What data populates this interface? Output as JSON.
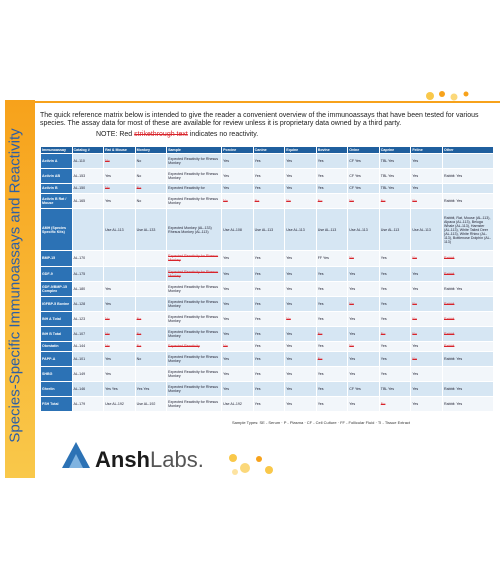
{
  "side_title": "Species-Specific Immunoassays and Reactivity",
  "intro": "The quick reference matrix below is intended to give the reader a convenient overview of the immunoassays that have been tested for various species. The assay data for most of these are available for review unless it is proprietary data owned by a third party.",
  "note": {
    "prefix": "NOTE: Red",
    "strike": "strikethrough text",
    "suffix": "indicates no reactivity.",
    "color": "#d8232a"
  },
  "table": {
    "columns": [
      "Immunoassay",
      "Catalog #",
      "Rat & Mouse",
      "Monkey",
      "Sample",
      "Porcine",
      "Canine",
      "Equine",
      "Bovine",
      "Ovine",
      "Caprine",
      "Feline",
      "Other"
    ],
    "rows": [
      [
        "Activin A",
        "AL-110",
        {
          "text": "No",
          "color": "#d8232a"
        },
        "No",
        "Expected Reactivity for Rhesus Monkey",
        "Yes",
        "Yes",
        "Yes",
        "Yes",
        "CF Yes",
        "TBL Yes",
        "Yes",
        ""
      ],
      [
        "Activin AB",
        "AL-153",
        "Yes",
        "No",
        "Expected Reactivity for Rhesus Monkey",
        "Yes",
        "Yes",
        "Yes",
        "Yes",
        "CF Yes",
        "TBL Yes",
        "Yes",
        "Rabbit: Yes"
      ],
      [
        "Activin B",
        "AL-150",
        {
          "text": "No",
          "color": "#d8232a"
        },
        {
          "text": "No",
          "color": "#d8232a"
        },
        "Expected Reactivity for",
        "Yes",
        "Yes",
        "Yes",
        "Yes",
        "CF Yes",
        "TBL Yes",
        "Yes",
        ""
      ],
      [
        "Activin B Rat / Mouse",
        "AL-165",
        "Yes",
        "No",
        "Expected Reactivity for Rhesus Monkey",
        {
          "text": "No",
          "color": "#d8232a"
        },
        {
          "text": "No",
          "color": "#d8232a"
        },
        {
          "text": "No",
          "color": "#d8232a"
        },
        {
          "text": "No",
          "color": "#d8232a"
        },
        {
          "text": "No",
          "color": "#d8232a"
        },
        {
          "text": "No",
          "color": "#d8232a"
        },
        {
          "text": "No",
          "color": "#d8232a"
        },
        "Rabbit: Yes"
      ],
      [
        "AMH (Species Specific Kits)",
        "",
        "Use AL-113",
        "Use AL-133",
        "Expected Monkey (AL-133) Rhesus Monkey (AL-113)",
        "Use AL-108",
        "Use AL-113",
        "Use AL-113",
        "Use AL-113",
        "Use AL-113",
        "Use AL-113",
        "Use AL-113",
        "Rabbit, Rat, Mouse (AL-113), Alpaca (AL-113), Beluga Whale (AL-113), Hamster (AL-113), White Tailed Deer (AL-113), White Rhino (AL-113), Bottlenose Dolphin (AL-113)"
      ],
      [
        "BMP-15",
        "AL-170",
        "",
        "",
        {
          "text": "Expected Reactivity for Rhesus Monkey",
          "color": "#d8232a"
        },
        "Yes",
        "Yes",
        "Yes",
        "FF Yes",
        {
          "text": "No",
          "color": "#d8232a"
        },
        "Yes",
        {
          "text": "No",
          "color": "#d8232a"
        },
        {
          "text": "Rabbit",
          "color": "#d8232a"
        }
      ],
      [
        "GDF-9",
        "AL-175",
        "",
        "",
        {
          "text": "Expected Reactivity for Rhesus Monkey",
          "color": "#d8232a"
        },
        "Yes",
        "Yes",
        "Yes",
        "Yes",
        "Yes",
        "Yes",
        "Yes",
        {
          "text": "Rabbit",
          "color": "#d8232a"
        }
      ],
      [
        "GDF-9/BMP-15 Complex",
        "AL-180",
        "Yes",
        "",
        "Expected Reactivity for Rhesus Monkey",
        "Yes",
        "Yes",
        "Yes",
        "Yes",
        "Yes",
        "Yes",
        "Yes",
        "Rabbit: Yes"
      ],
      [
        "IGFBP-5 Bovine",
        "AL-128",
        "Yes",
        "",
        "Expected Reactivity for Rhesus Monkey",
        "Yes",
        "Yes",
        "Yes",
        "Yes",
        {
          "text": "No",
          "color": "#d8232a"
        },
        "Yes",
        {
          "text": "No",
          "color": "#d8232a"
        },
        {
          "text": "Rabbit",
          "color": "#d8232a"
        }
      ],
      [
        "INH A Total",
        "AL-123",
        {
          "text": "No",
          "color": "#d8232a"
        },
        {
          "text": "No",
          "color": "#d8232a"
        },
        "Expected Reactivity for Rhesus Monkey",
        "Yes",
        "Yes",
        {
          "text": "No",
          "color": "#d8232a"
        },
        "Yes",
        "Yes",
        "Yes",
        {
          "text": "No",
          "color": "#d8232a"
        },
        {
          "text": "Rabbit",
          "color": "#d8232a"
        }
      ],
      [
        "INH B Total",
        "AL-107",
        {
          "text": "No",
          "color": "#d8232a"
        },
        {
          "text": "No",
          "color": "#d8232a"
        },
        "Expected Reactivity for Rhesus Monkey",
        "Yes",
        "Yes",
        "Yes",
        {
          "text": "No",
          "color": "#d8232a"
        },
        "Yes",
        {
          "text": "No",
          "color": "#d8232a"
        },
        {
          "text": "No",
          "color": "#d8232a"
        },
        {
          "text": "Rabbit",
          "color": "#d8232a"
        }
      ],
      [
        "Obestatin",
        "AL-144",
        {
          "text": "No",
          "color": "#d8232a"
        },
        {
          "text": "No",
          "color": "#d8232a"
        },
        {
          "text": "Expected Reactivity",
          "color": "#d8232a"
        },
        {
          "text": "No",
          "color": "#d8232a"
        },
        "Yes",
        "Yes",
        "Yes",
        {
          "text": "No",
          "color": "#d8232a"
        },
        "Yes",
        "Yes",
        {
          "text": "Rabbit",
          "color": "#d8232a"
        }
      ],
      [
        "PAPP-A",
        "AL-101",
        "Yes",
        "No",
        "Expected Reactivity for Rhesus Monkey",
        "Yes",
        "Yes",
        "Yes",
        {
          "text": "No",
          "color": "#d8232a"
        },
        "Yes",
        "Yes",
        {
          "text": "No",
          "color": "#d8232a"
        },
        "Rabbit: Yes"
      ],
      [
        "SHBG",
        "AL-149",
        "Yes",
        "",
        "Expected Reactivity for Rhesus Monkey",
        "Yes",
        "Yes",
        "Yes",
        "Yes",
        "Yes",
        "Yes",
        "Yes",
        ""
      ],
      [
        "Ghrelin",
        "AL-146",
        "Yes Yes",
        "Yes Yes",
        "Expected Reactivity for Rhesus Monkey",
        "Yes",
        "Yes",
        "Yes",
        "Yes",
        "CF Yes",
        "TBL Yes",
        "Yes",
        "Rabbit: Yes"
      ],
      [
        "FSH Total",
        "AL-179",
        "Use AL-192",
        "Use AL-192",
        "Expected Reactivity for Rhesus Monkey",
        "Use AL-192",
        "Yes",
        "Yes",
        "Yes",
        "Yes",
        {
          "text": "No",
          "color": "#d8232a"
        },
        "Yes",
        "Rabbit: Yes"
      ]
    ]
  },
  "legend": "Sample Types: SE - Serum  ·  P - Plasma  ·  CF - Cell Culture  ·  FF - Follicular Fluid  ·  TI - Tissue Extract",
  "logo": {
    "bold": "Ansh",
    "light": "Labs."
  }
}
